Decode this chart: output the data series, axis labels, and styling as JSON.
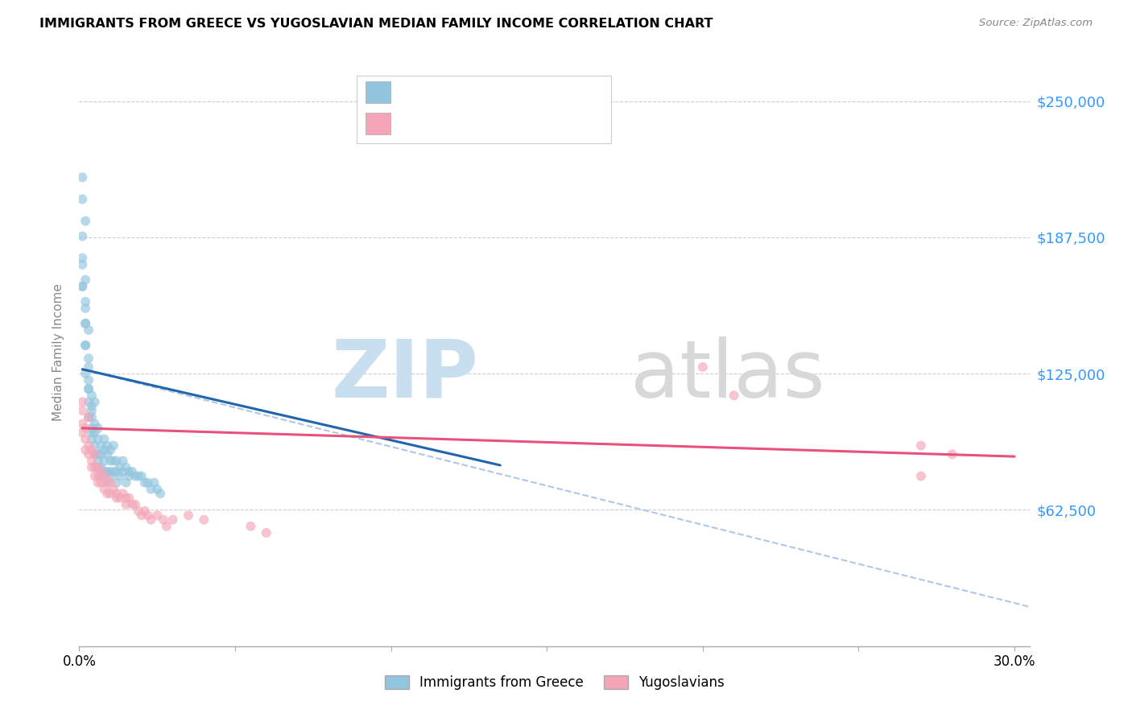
{
  "title": "IMMIGRANTS FROM GREECE VS YUGOSLAVIAN MEDIAN FAMILY INCOME CORRELATION CHART",
  "source": "Source: ZipAtlas.com",
  "ylabel": "Median Family Income",
  "yticks": [
    0,
    62500,
    125000,
    187500,
    250000
  ],
  "ytick_labels": [
    "",
    "$62,500",
    "$125,000",
    "$187,500",
    "$250,000"
  ],
  "ymax": 270000,
  "ymin": 0,
  "xmin": 0.0,
  "xmax": 0.305,
  "color_blue": "#92c5de",
  "color_pink": "#f4a6b8",
  "color_blue_line": "#2166ac",
  "color_pink_line": "#e8517a",
  "color_dashed": "#aec7e8",
  "series1_label": "Immigrants from Greece",
  "series2_label": "Yugoslavians",
  "greece_x": [
    0.001,
    0.001,
    0.001,
    0.001,
    0.002,
    0.002,
    0.002,
    0.002,
    0.002,
    0.002,
    0.003,
    0.003,
    0.003,
    0.003,
    0.003,
    0.003,
    0.004,
    0.004,
    0.004,
    0.004,
    0.004,
    0.005,
    0.005,
    0.005,
    0.005,
    0.005,
    0.006,
    0.006,
    0.006,
    0.006,
    0.006,
    0.007,
    0.007,
    0.007,
    0.007,
    0.008,
    0.008,
    0.008,
    0.008,
    0.009,
    0.009,
    0.009,
    0.009,
    0.01,
    0.01,
    0.01,
    0.01,
    0.011,
    0.011,
    0.011,
    0.012,
    0.012,
    0.012,
    0.013,
    0.013,
    0.014,
    0.014,
    0.015,
    0.015,
    0.016,
    0.016,
    0.017,
    0.018,
    0.019,
    0.02,
    0.021,
    0.022,
    0.023,
    0.024,
    0.025,
    0.026,
    0.001,
    0.001,
    0.001,
    0.002,
    0.002,
    0.002,
    0.003,
    0.003,
    0.004,
    0.004
  ],
  "greece_y": [
    215000,
    205000,
    175000,
    165000,
    195000,
    168000,
    155000,
    148000,
    138000,
    125000,
    145000,
    132000,
    122000,
    118000,
    112000,
    105000,
    115000,
    110000,
    105000,
    100000,
    95000,
    112000,
    102000,
    98000,
    92000,
    88000,
    100000,
    95000,
    88000,
    85000,
    82000,
    92000,
    88000,
    82000,
    78000,
    95000,
    90000,
    85000,
    80000,
    92000,
    88000,
    80000,
    75000,
    90000,
    85000,
    80000,
    78000,
    92000,
    85000,
    80000,
    85000,
    80000,
    75000,
    82000,
    78000,
    85000,
    80000,
    82000,
    75000,
    80000,
    78000,
    80000,
    78000,
    78000,
    78000,
    75000,
    75000,
    72000,
    75000,
    72000,
    70000,
    178000,
    188000,
    165000,
    158000,
    148000,
    138000,
    128000,
    118000,
    108000,
    98000
  ],
  "yugo_x": [
    0.001,
    0.001,
    0.001,
    0.001,
    0.002,
    0.002,
    0.002,
    0.003,
    0.003,
    0.003,
    0.004,
    0.004,
    0.004,
    0.005,
    0.005,
    0.005,
    0.006,
    0.006,
    0.006,
    0.007,
    0.007,
    0.008,
    0.008,
    0.009,
    0.009,
    0.01,
    0.01,
    0.011,
    0.012,
    0.012,
    0.013,
    0.014,
    0.015,
    0.015,
    0.016,
    0.017,
    0.018,
    0.019,
    0.02,
    0.021,
    0.022,
    0.023,
    0.025,
    0.027,
    0.028,
    0.03,
    0.035,
    0.04,
    0.055,
    0.06,
    0.2,
    0.21,
    0.27,
    0.28,
    0.27
  ],
  "yugo_y": [
    112000,
    108000,
    102000,
    98000,
    100000,
    95000,
    90000,
    105000,
    92000,
    88000,
    90000,
    85000,
    82000,
    88000,
    82000,
    78000,
    82000,
    78000,
    75000,
    80000,
    75000,
    78000,
    72000,
    76000,
    70000,
    75000,
    70000,
    72000,
    70000,
    68000,
    68000,
    70000,
    68000,
    65000,
    68000,
    65000,
    65000,
    62000,
    60000,
    62000,
    60000,
    58000,
    60000,
    58000,
    55000,
    58000,
    60000,
    58000,
    55000,
    52000,
    128000,
    115000,
    92000,
    88000,
    78000
  ],
  "greece_line_x": [
    0.001,
    0.135
  ],
  "greece_line_y": [
    127000,
    83000
  ],
  "yugo_line_x": [
    0.001,
    0.3
  ],
  "yugo_line_y": [
    100000,
    87000
  ],
  "dashed_line_x": [
    0.001,
    0.305
  ],
  "dashed_line_y": [
    127000,
    18000
  ]
}
